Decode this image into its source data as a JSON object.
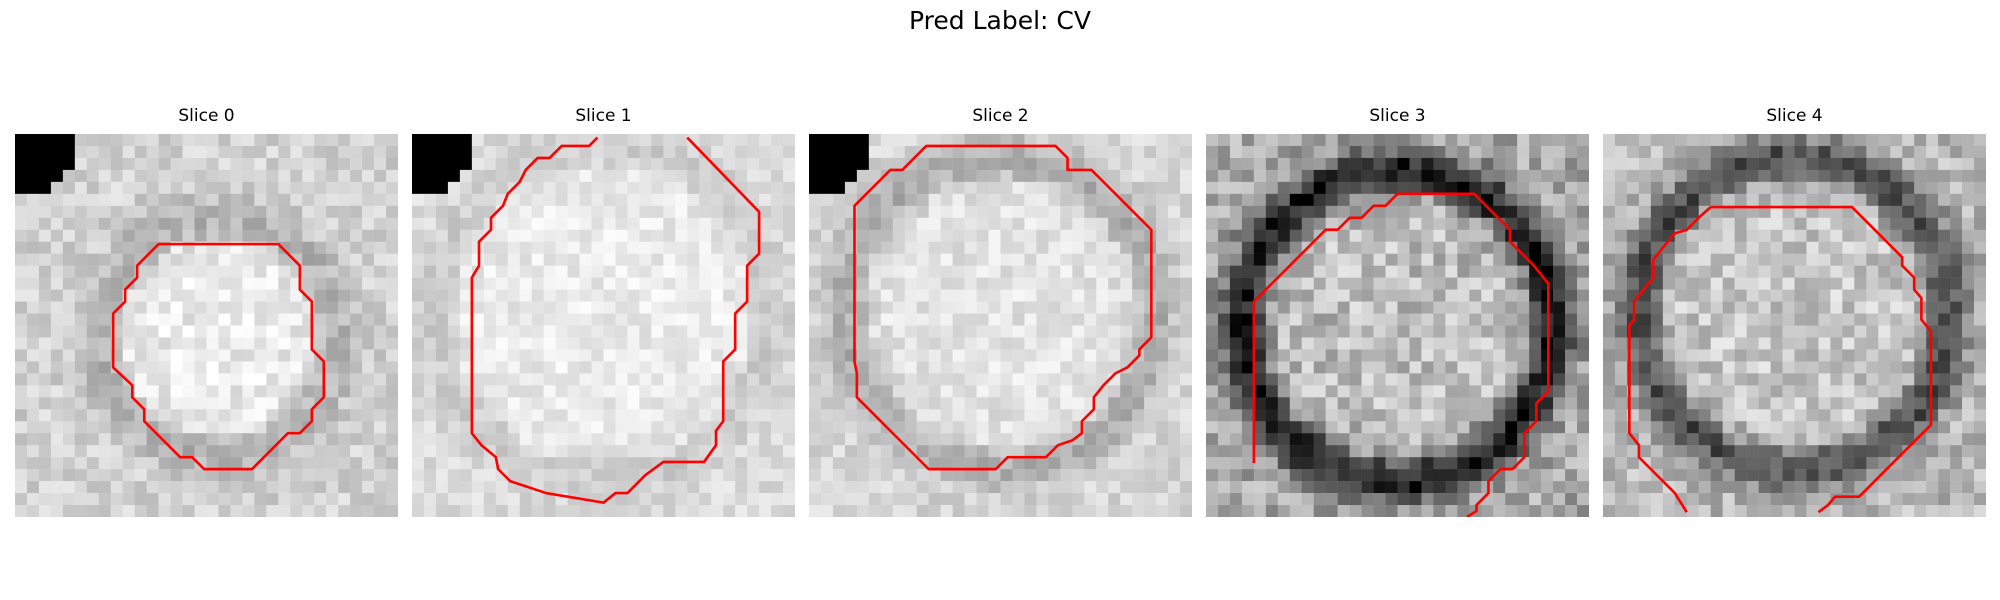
{
  "figure": {
    "title": "Pred Label: CV",
    "panels": [
      {
        "title": "Slice 0",
        "variant": "light_blob",
        "contour_color": "#ff0000"
      },
      {
        "title": "Slice 1",
        "variant": "light_wide",
        "contour_color": "#ff0000"
      },
      {
        "title": "Slice 2",
        "variant": "light_ring",
        "contour_color": "#ff0000"
      },
      {
        "title": "Slice 3",
        "variant": "dark_ring",
        "contour_color": "#ff0000"
      },
      {
        "title": "Slice 4",
        "variant": "dark_ring_faint",
        "contour_color": "#ff0000"
      }
    ]
  }
}
